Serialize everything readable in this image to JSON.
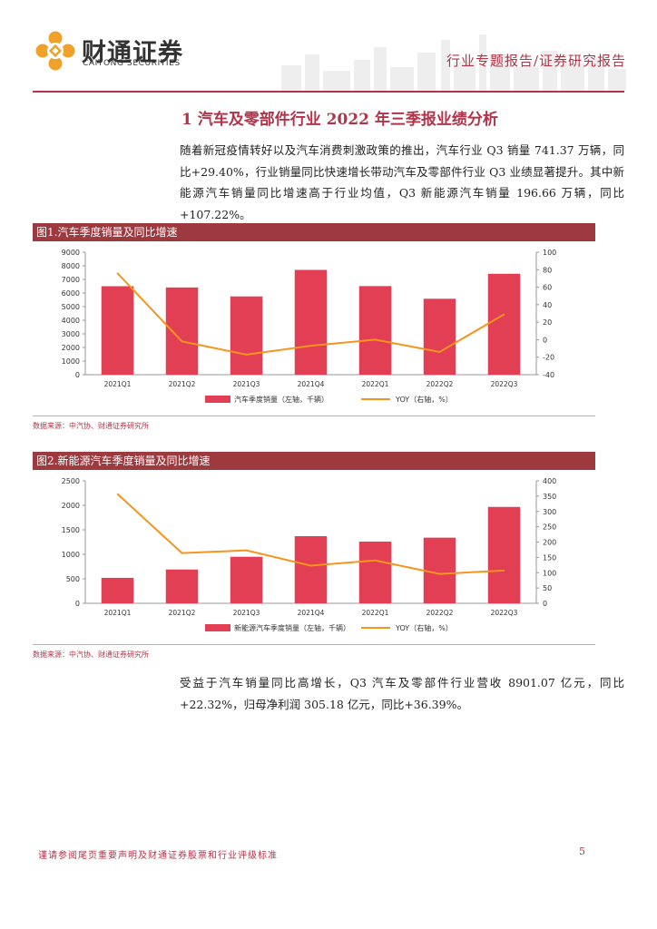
{
  "header": {
    "logo_cn": "财通证券",
    "logo_en": "CAITONG SECURITIES",
    "report_type": "行业专题报告/证券研究报告"
  },
  "section": {
    "title": "1   汽车及零部件行业 2022 年三季报业绩分析"
  },
  "paragraph1": "随着新冠疫情转好以及汽车消费刺激政策的推出，汽车行业 Q3 销量 741.37 万辆，同比+29.40%，行业销量同比快速增长带动汽车及零部件行业 Q3 业绩显著提升。其中新能源汽车销量同比增速高于行业均值，Q3 新能源汽车销量 196.66 万辆，同比+107.22%。",
  "figure1": {
    "caption": "图1.汽车季度销量及同比增速",
    "source": "数据来源：中汽协、财通证券研究所"
  },
  "figure2": {
    "caption": "图2.新能源汽车季度销量及同比增速",
    "source": "数据来源：中汽协、财通证券研究所"
  },
  "paragraph2": "受益于汽车销量同比高增长，Q3 汽车及零部件行业营收 8901.07 亿元，同比+22.32%，归母净利润 305.18 亿元，同比+36.39%。",
  "footer": {
    "note": "谨请参阅尾页重要声明及财通证券股票和行业评级标准",
    "page": "5"
  },
  "colors": {
    "bar": "#e23f55",
    "line": "#f7941d",
    "accent": "#b2344a"
  },
  "chart_data": [
    {
      "type": "bar",
      "categories": [
        "2021Q1",
        "2021Q2",
        "2021Q3",
        "2021Q4",
        "2022Q1",
        "2022Q2",
        "2022Q3"
      ],
      "series": [
        {
          "name": "汽车季度销量（左轴，千辆）",
          "type": "bar",
          "axis": "left",
          "values": [
            6500,
            6410,
            5750,
            7700,
            6510,
            5580,
            7414
          ]
        },
        {
          "name": "YOY（右轴，%）",
          "type": "line",
          "axis": "right",
          "values": [
            76,
            -2,
            -17,
            -7,
            0,
            -14,
            29
          ]
        }
      ],
      "y_left": {
        "min": 0,
        "max": 9000,
        "ticks": [
          0,
          1000,
          2000,
          3000,
          4000,
          5000,
          6000,
          7000,
          8000,
          9000
        ]
      },
      "y_right": {
        "min": -40,
        "max": 100,
        "ticks": [
          -40,
          -20,
          0,
          20,
          40,
          60,
          80,
          100
        ]
      },
      "legend": "bottom"
    },
    {
      "type": "bar",
      "categories": [
        "2021Q1",
        "2021Q2",
        "2021Q3",
        "2021Q4",
        "2022Q1",
        "2022Q2",
        "2022Q3"
      ],
      "series": [
        {
          "name": "新能源汽车季度销量（左轴，千辆）",
          "type": "bar",
          "axis": "left",
          "values": [
            520,
            690,
            950,
            1370,
            1260,
            1340,
            1967
          ]
        },
        {
          "name": "YOY（右轴，%）",
          "type": "line",
          "axis": "right",
          "values": [
            357,
            164,
            173,
            123,
            140,
            96,
            107
          ]
        }
      ],
      "y_left": {
        "min": 0,
        "max": 2500,
        "ticks": [
          0,
          500,
          1000,
          1500,
          2000,
          2500
        ]
      },
      "y_right": {
        "min": 0,
        "max": 400,
        "ticks": [
          0,
          50,
          100,
          150,
          200,
          250,
          300,
          350,
          400
        ]
      },
      "legend": "bottom"
    }
  ]
}
